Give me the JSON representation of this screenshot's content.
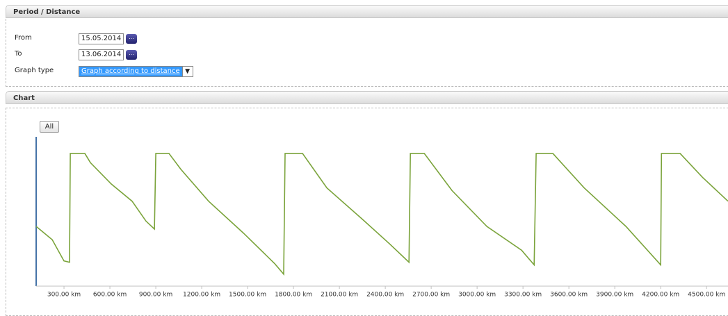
{
  "period_panel": {
    "title": "Period / Distance",
    "fields": [
      {
        "label": "From",
        "value": "15.05.2014"
      },
      {
        "label": "To",
        "value": "13.06.2014"
      },
      {
        "label": "Graph type",
        "value": "Graph according to distance"
      }
    ]
  },
  "chart_panel": {
    "title": "Chart",
    "zoom_button": "All"
  },
  "chart_data": {
    "type": "line",
    "color": "#7aa33a",
    "x": [
      118,
      223,
      300,
      336,
      341,
      436,
      473,
      609,
      745,
      836,
      891,
      900,
      986,
      1064,
      1245,
      1473,
      1677,
      1736,
      1745,
      1859,
      2018,
      2245,
      2427,
      2555,
      2564,
      2655,
      2836,
      3064,
      3291,
      3373,
      3386,
      3495,
      3700,
      3973,
      4200,
      4205,
      4327,
      4473,
      4640
    ],
    "values": [
      45,
      35,
      19,
      18,
      100,
      100,
      93,
      77,
      64,
      49,
      43,
      100,
      100,
      88,
      64,
      40,
      17,
      9,
      100,
      100,
      74,
      51,
      32,
      18,
      100,
      100,
      72,
      45,
      27,
      16,
      100,
      100,
      74,
      45,
      16,
      100,
      100,
      82,
      64
    ],
    "xlim": [
      118,
      4640
    ],
    "ylim": [
      0,
      112
    ],
    "xticks": [
      {
        "value": 300,
        "label": "300.00 km"
      },
      {
        "value": 600,
        "label": "600.00 km"
      },
      {
        "value": 900,
        "label": "900.00 km"
      },
      {
        "value": 1200,
        "label": "1200.00 km"
      },
      {
        "value": 1500,
        "label": "1500.00 km"
      },
      {
        "value": 1800,
        "label": "1800.00 km"
      },
      {
        "value": 2100,
        "label": "2100.00 km"
      },
      {
        "value": 2400,
        "label": "2400.00 km"
      },
      {
        "value": 2700,
        "label": "2700.00 km"
      },
      {
        "value": 3000,
        "label": "3000.00 km"
      },
      {
        "value": 3300,
        "label": "3300.00 km"
      },
      {
        "value": 3600,
        "label": "3600.00 km"
      },
      {
        "value": 3900,
        "label": "3900.00 km"
      },
      {
        "value": 4200,
        "label": "4200.00 km"
      },
      {
        "value": 4500,
        "label": "4500.00 km"
      }
    ]
  }
}
